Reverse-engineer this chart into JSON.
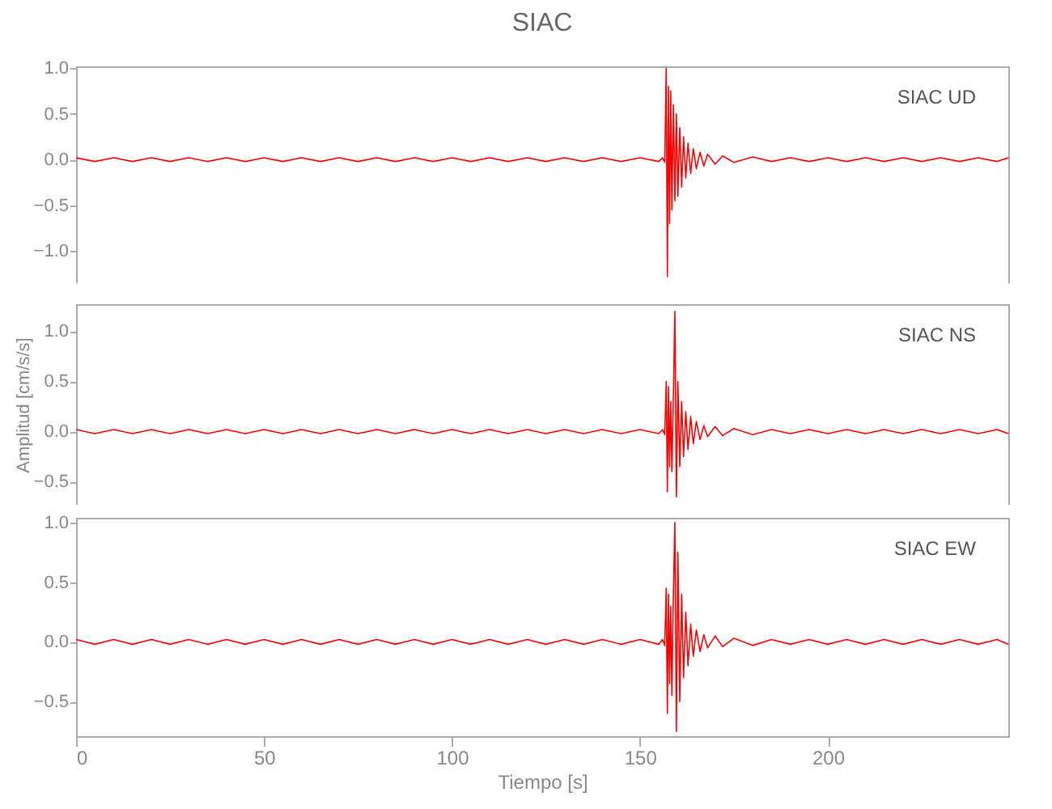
{
  "chart_data": [
    {
      "type": "line",
      "title": "SIAC",
      "annotations": [
        "SIAC   UD"
      ],
      "xlim": [
        0,
        248
      ],
      "xticks": [
        0,
        50,
        100,
        150,
        200
      ],
      "ylim": [
        -1.35,
        1.02
      ],
      "yticks": [
        {
          "value": 1,
          "label": "1.0"
        },
        {
          "value": 0.5,
          "label": "0.5"
        },
        {
          "value": 0,
          "label": "0.0"
        },
        {
          "value": -0.5,
          "label": "−0.5"
        },
        {
          "value": -1,
          "label": "−1.0"
        }
      ],
      "tick_labels": "y",
      "grid": false,
      "series": [
        {
          "color": "#ff0000",
          "x": [
            0,
            5,
            10,
            15,
            20,
            25,
            30,
            35,
            40,
            45,
            50,
            55,
            60,
            65,
            70,
            75,
            80,
            85,
            90,
            95,
            100,
            105,
            110,
            115,
            120,
            125,
            130,
            135,
            140,
            145,
            150,
            155,
            156,
            156.6,
            157,
            157.3,
            157.6,
            157.9,
            158.2,
            158.5,
            158.9,
            159.3,
            159.7,
            160.1,
            160.6,
            161.1,
            161.6,
            162.2,
            162.8,
            163.5,
            164.2,
            165,
            166,
            167,
            168,
            170,
            172,
            175,
            180,
            185,
            190,
            195,
            200,
            205,
            210,
            215,
            220,
            225,
            230,
            235,
            240,
            245,
            248
          ],
          "values": [
            0.02,
            -0.02,
            0.02,
            -0.02,
            0.02,
            -0.02,
            0.02,
            -0.02,
            0.02,
            -0.02,
            0.02,
            -0.02,
            0.02,
            -0.02,
            0.02,
            -0.02,
            0.02,
            -0.02,
            0.02,
            -0.02,
            0.02,
            -0.02,
            0.02,
            -0.02,
            0.02,
            -0.02,
            0.02,
            -0.02,
            0.02,
            -0.02,
            0.02,
            -0.02,
            0.02,
            -0.03,
            1.0,
            -1.28,
            0.8,
            -0.7,
            0.75,
            -0.55,
            0.6,
            -0.45,
            0.5,
            -0.4,
            0.35,
            -0.3,
            0.25,
            -0.2,
            0.18,
            -0.15,
            0.12,
            -0.1,
            0.08,
            -0.07,
            0.06,
            -0.05,
            0.04,
            -0.03,
            0.03,
            -0.02,
            0.02,
            -0.02,
            0.02,
            -0.02,
            0.02,
            -0.02,
            0.02,
            -0.02,
            0.02,
            -0.02,
            0.02,
            -0.02,
            0.02
          ]
        }
      ]
    },
    {
      "type": "line",
      "ylabel": "Amplitud [cm/s/s]",
      "annotations": [
        "SIAC   NS"
      ],
      "xlim": [
        0,
        248
      ],
      "xticks": [
        0,
        50,
        100,
        150,
        200
      ],
      "ylim": [
        -0.73,
        1.27
      ],
      "yticks": [
        {
          "value": 1,
          "label": "1.0"
        },
        {
          "value": 0.5,
          "label": "0.5"
        },
        {
          "value": 0,
          "label": "0.0"
        },
        {
          "value": -0.5,
          "label": "−0.5"
        }
      ],
      "tick_labels": "y",
      "grid": false,
      "series": [
        {
          "color": "#ff0000",
          "x": [
            0,
            5,
            10,
            15,
            20,
            25,
            30,
            35,
            40,
            45,
            50,
            55,
            60,
            65,
            70,
            75,
            80,
            85,
            90,
            95,
            100,
            105,
            110,
            115,
            120,
            125,
            130,
            135,
            140,
            145,
            150,
            155,
            156,
            156.6,
            157,
            157.3,
            157.6,
            157.9,
            158.2,
            158.5,
            158.9,
            159.3,
            159.7,
            160.1,
            160.6,
            161.1,
            161.6,
            162.2,
            162.8,
            163.5,
            164.2,
            165,
            166,
            167,
            168,
            170,
            172,
            175,
            180,
            185,
            190,
            195,
            200,
            205,
            210,
            215,
            220,
            225,
            230,
            235,
            240,
            245,
            248
          ],
          "values": [
            0.02,
            -0.02,
            0.02,
            -0.02,
            0.02,
            -0.02,
            0.02,
            -0.02,
            0.02,
            -0.02,
            0.02,
            -0.02,
            0.02,
            -0.02,
            0.02,
            -0.02,
            0.02,
            -0.02,
            0.02,
            -0.02,
            0.02,
            -0.02,
            0.02,
            -0.02,
            0.02,
            -0.02,
            0.02,
            -0.02,
            0.02,
            -0.02,
            0.02,
            -0.02,
            0.02,
            -0.03,
            0.5,
            -0.6,
            0.45,
            -0.35,
            0.3,
            -0.4,
            0.35,
            1.2,
            -0.65,
            0.5,
            -0.35,
            0.3,
            -0.25,
            0.2,
            -0.18,
            0.15,
            -0.12,
            0.1,
            -0.08,
            0.06,
            -0.05,
            0.05,
            -0.04,
            0.03,
            -0.03,
            0.02,
            -0.02,
            0.02,
            -0.02,
            0.02,
            -0.02,
            0.02,
            -0.02,
            0.02,
            -0.02,
            0.02,
            -0.02,
            0.02,
            -0.02
          ]
        }
      ]
    },
    {
      "type": "line",
      "xlabel": "Tiempo [s]",
      "annotations": [
        "SIAC   EW"
      ],
      "xlim": [
        0,
        248
      ],
      "xticks": [
        0,
        50,
        100,
        150,
        200
      ],
      "ylim": [
        -0.79,
        1.04
      ],
      "yticks": [
        {
          "value": 1,
          "label": "1.0"
        },
        {
          "value": 0.5,
          "label": "0.5"
        },
        {
          "value": 0,
          "label": "0.0"
        },
        {
          "value": -0.5,
          "label": "−0.5"
        }
      ],
      "grid": false,
      "series": [
        {
          "color": "#ff0000",
          "x": [
            0,
            5,
            10,
            15,
            20,
            25,
            30,
            35,
            40,
            45,
            50,
            55,
            60,
            65,
            70,
            75,
            80,
            85,
            90,
            95,
            100,
            105,
            110,
            115,
            120,
            125,
            130,
            135,
            140,
            145,
            150,
            155,
            156,
            156.6,
            157,
            157.3,
            157.6,
            157.9,
            158.2,
            158.5,
            158.9,
            159.3,
            159.7,
            160.1,
            160.6,
            161.1,
            161.6,
            162.2,
            162.8,
            163.5,
            164.2,
            165,
            166,
            167,
            168,
            170,
            172,
            175,
            180,
            185,
            190,
            195,
            200,
            205,
            210,
            215,
            220,
            225,
            230,
            235,
            240,
            245,
            248
          ],
          "values": [
            0.02,
            -0.02,
            0.02,
            -0.02,
            0.02,
            -0.02,
            0.02,
            -0.02,
            0.02,
            -0.02,
            0.02,
            -0.02,
            0.02,
            -0.02,
            0.02,
            -0.02,
            0.02,
            -0.02,
            0.02,
            -0.02,
            0.02,
            -0.02,
            0.02,
            -0.02,
            0.02,
            -0.02,
            0.02,
            -0.02,
            0.02,
            -0.02,
            0.02,
            -0.02,
            0.02,
            -0.03,
            0.45,
            -0.6,
            0.4,
            -0.35,
            0.3,
            -0.45,
            0.4,
            1.0,
            -0.75,
            0.75,
            -0.5,
            0.4,
            -0.3,
            0.25,
            -0.2,
            0.15,
            -0.12,
            0.1,
            -0.08,
            0.06,
            -0.05,
            0.05,
            -0.04,
            0.03,
            -0.03,
            0.02,
            -0.02,
            0.02,
            -0.02,
            0.02,
            -0.02,
            0.02,
            -0.02,
            0.02,
            -0.02,
            0.02,
            -0.02,
            0.02,
            -0.02
          ]
        }
      ]
    }
  ]
}
